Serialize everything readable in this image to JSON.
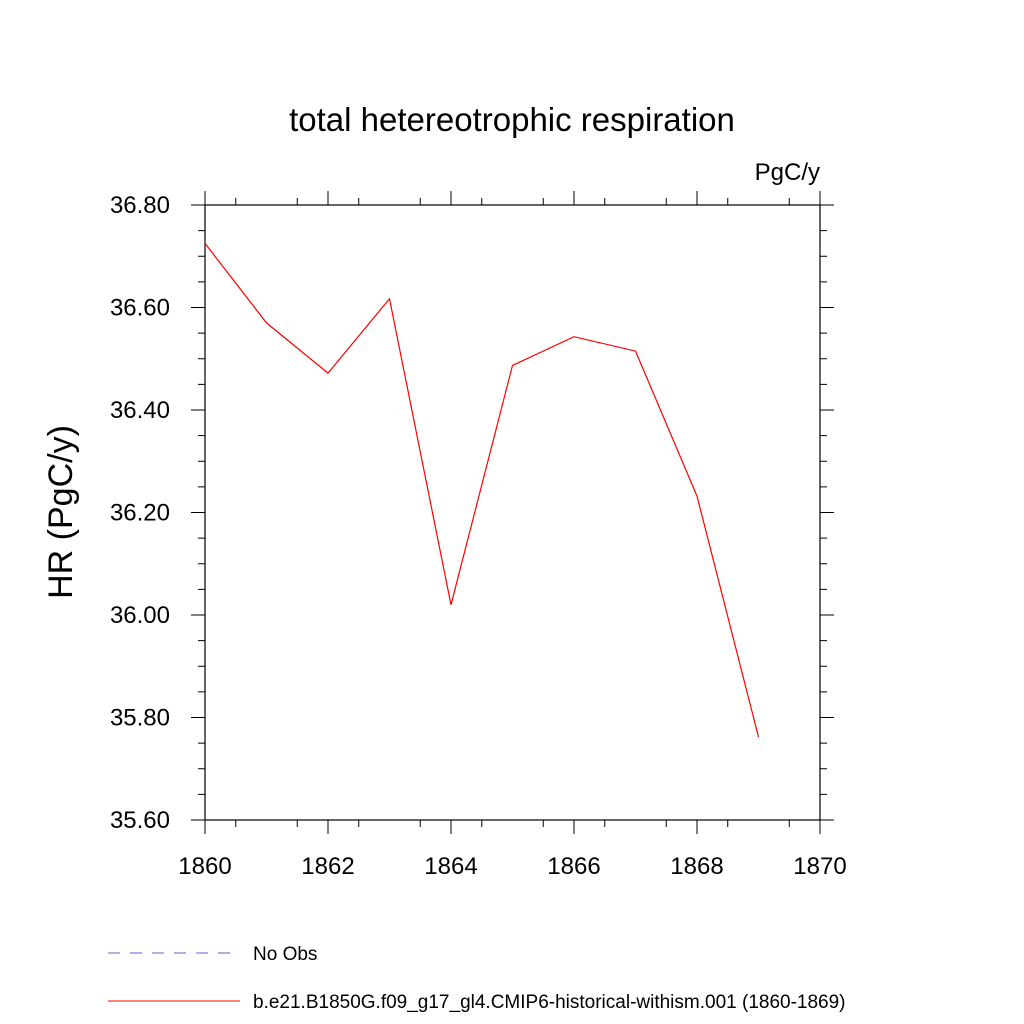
{
  "chart_data": {
    "type": "line",
    "title": "total hetereotrophic respiration",
    "units_label": "PgC/y",
    "ylabel": "HR  (PgC/y)",
    "xlabel": "",
    "xlim": [
      1860,
      1870
    ],
    "ylim": [
      35.6,
      36.8
    ],
    "x_ticks": [
      1860,
      1862,
      1864,
      1866,
      1868,
      1870
    ],
    "x_tick_labels": [
      "1860",
      "1862",
      "1864",
      "1866",
      "1868",
      "1870"
    ],
    "y_ticks": [
      35.6,
      35.8,
      36.0,
      36.2,
      36.4,
      36.6,
      36.8
    ],
    "y_tick_labels": [
      "35.60",
      "35.80",
      "36.00",
      "36.20",
      "36.40",
      "36.60",
      "36.80"
    ],
    "grid": false,
    "legend_position": "bottom",
    "series": [
      {
        "name": "No Obs",
        "color": "#6a5acd",
        "dash": "dashed",
        "x": [],
        "y": []
      },
      {
        "name": "b.e21.B1850G.f09_g17_gl4.CMIP6-historical-withism.001 (1860-1869)",
        "color": "#ff0000",
        "dash": "solid",
        "x": [
          1860,
          1861,
          1862,
          1863,
          1864,
          1865,
          1866,
          1867,
          1868,
          1869
        ],
        "y": [
          36.725,
          36.57,
          36.472,
          36.617,
          36.02,
          36.487,
          36.543,
          36.515,
          36.232,
          35.762
        ]
      }
    ]
  }
}
